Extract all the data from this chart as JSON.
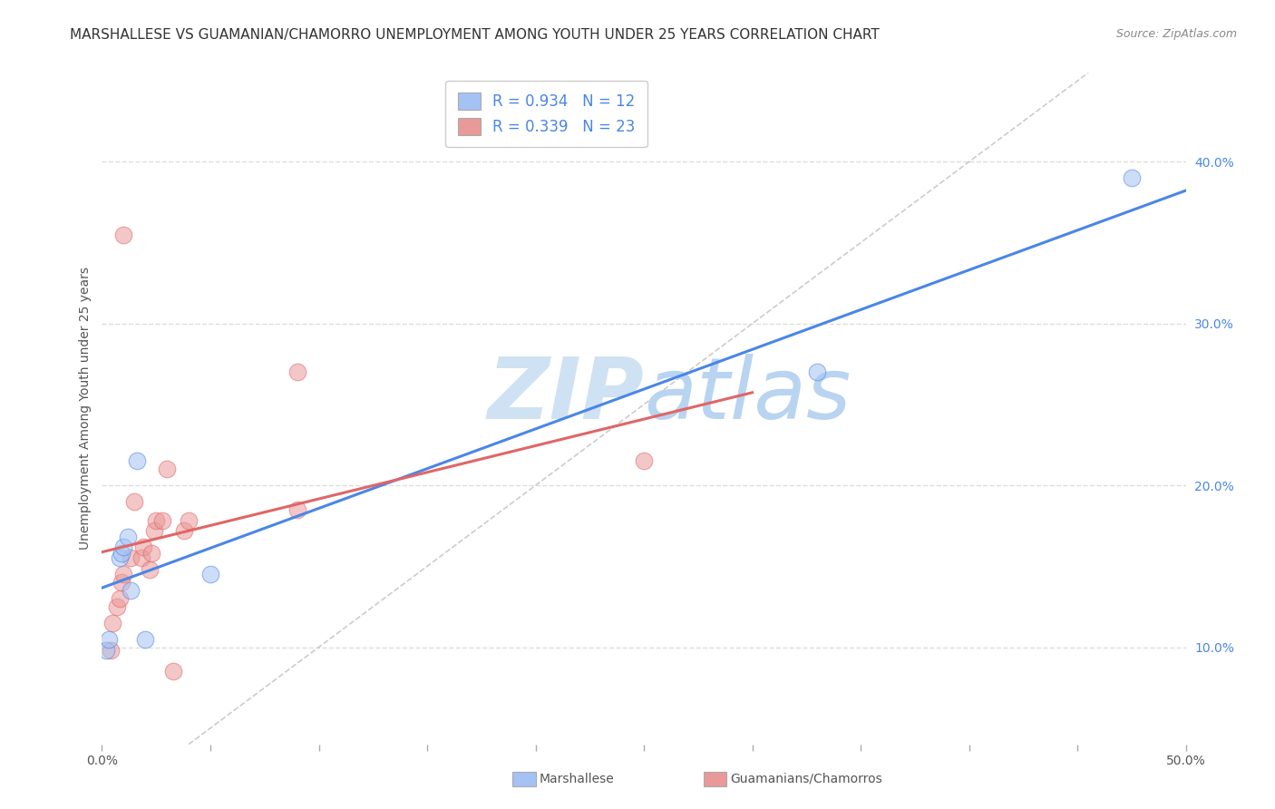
{
  "title": "MARSHALLESE VS GUAMANIAN/CHAMORRO UNEMPLOYMENT AMONG YOUTH UNDER 25 YEARS CORRELATION CHART",
  "source": "Source: ZipAtlas.com",
  "ylabel": "Unemployment Among Youth under 25 years",
  "xlim": [
    0.0,
    0.5
  ],
  "ylim": [
    0.04,
    0.455
  ],
  "xticks": [
    0.0,
    0.05,
    0.1,
    0.15,
    0.2,
    0.25,
    0.3,
    0.35,
    0.4,
    0.45,
    0.5
  ],
  "yticks": [
    0.1,
    0.2,
    0.3,
    0.4
  ],
  "xtick_labels": [
    "0.0%",
    "",
    "",
    "",
    "",
    "",
    "",
    "",
    "",
    "",
    "50.0%"
  ],
  "ytick_labels": [
    "10.0%",
    "20.0%",
    "30.0%",
    "40.0%"
  ],
  "legend_labels": [
    "Marshallese",
    "Guamanians/Chamorros"
  ],
  "blue_R": 0.934,
  "blue_N": 12,
  "pink_R": 0.339,
  "pink_N": 23,
  "blue_color": "#a4c2f4",
  "pink_color": "#ea9999",
  "blue_line_color": "#4a86e8",
  "pink_line_color": "#e06666",
  "scatter_alpha": 0.55,
  "circle_size": 180,
  "blue_x": [
    0.002,
    0.003,
    0.008,
    0.009,
    0.01,
    0.012,
    0.013,
    0.016,
    0.02,
    0.05,
    0.33,
    0.475
  ],
  "blue_y": [
    0.098,
    0.105,
    0.155,
    0.158,
    0.162,
    0.168,
    0.135,
    0.215,
    0.105,
    0.145,
    0.27,
    0.39
  ],
  "pink_x": [
    0.004,
    0.005,
    0.007,
    0.008,
    0.009,
    0.01,
    0.01,
    0.013,
    0.015,
    0.018,
    0.019,
    0.022,
    0.023,
    0.024,
    0.025,
    0.028,
    0.03,
    0.033,
    0.038,
    0.04,
    0.09,
    0.09,
    0.25
  ],
  "pink_y": [
    0.098,
    0.115,
    0.125,
    0.13,
    0.14,
    0.145,
    0.355,
    0.155,
    0.19,
    0.155,
    0.162,
    0.148,
    0.158,
    0.172,
    0.178,
    0.178,
    0.21,
    0.085,
    0.172,
    0.178,
    0.185,
    0.27,
    0.215
  ],
  "background_color": "#ffffff",
  "grid_color": "#dddddd",
  "watermark_zip_color": "#cfe2f3",
  "watermark_atlas_color": "#b8d4f0",
  "title_fontsize": 11,
  "axis_label_fontsize": 10,
  "tick_fontsize": 10,
  "legend_fontsize": 12
}
